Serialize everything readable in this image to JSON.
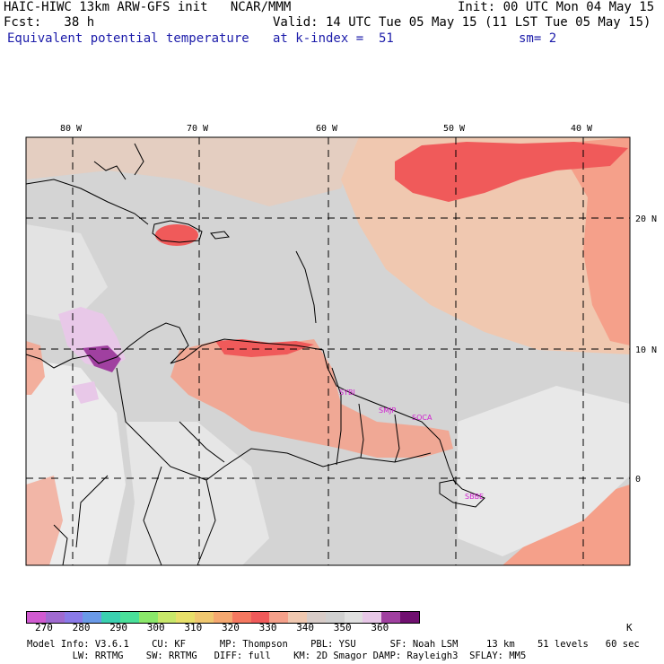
{
  "header": {
    "model_title": "HAIC-HIWC 13km ARW-GFS init   NCAR/MMM",
    "init": "Init: 00 UTC Mon 04 May 15",
    "fcst": "Fcst:   38 h",
    "valid": "Valid: 14 UTC Tue 05 May 15 (11 LST Tue 05 May 15)",
    "field": "Equivalent potential temperature",
    "level": "at k-index =  51",
    "smooth": "sm= 2"
  },
  "map": {
    "lon_labels": [
      "80 W",
      "70 W",
      "60 W",
      "50 W",
      "40 W"
    ],
    "lat_labels": [
      "20 N",
      "10 N",
      "0"
    ],
    "stations": [
      "SYBI",
      "SMJP",
      "SOCA",
      "SBBE"
    ]
  },
  "colorbar": {
    "colors": [
      "#d05ad0",
      "#a06ad0",
      "#8a7ae8",
      "#6a9ae8",
      "#3ad0b0",
      "#4ae09a",
      "#8ae86a",
      "#c8e86a",
      "#e8e06a",
      "#f0c870",
      "#f5a870",
      "#f57860",
      "#f05a5a",
      "#f5a08a",
      "#f0c8b0",
      "#d8ccc8",
      "#d0d0d0",
      "#e0e0e0",
      "#e8c8e8",
      "#a040a0",
      "#701070"
    ],
    "tick_labels": [
      "270",
      "280",
      "290",
      "300",
      "310",
      "320",
      "330",
      "340",
      "350",
      "360"
    ],
    "unit": "K"
  },
  "footer": {
    "line1": "Model Info: V3.6.1    CU: KF      MP: Thompson    PBL: YSU      SF: Noah LSM     13 km    51 levels   60 sec",
    "line2": "        LW: RRTMG    SW: RRTMG   DIFF: full    KM: 2D Smagor DAMP: Rayleigh3  SFLAY: MM5"
  }
}
